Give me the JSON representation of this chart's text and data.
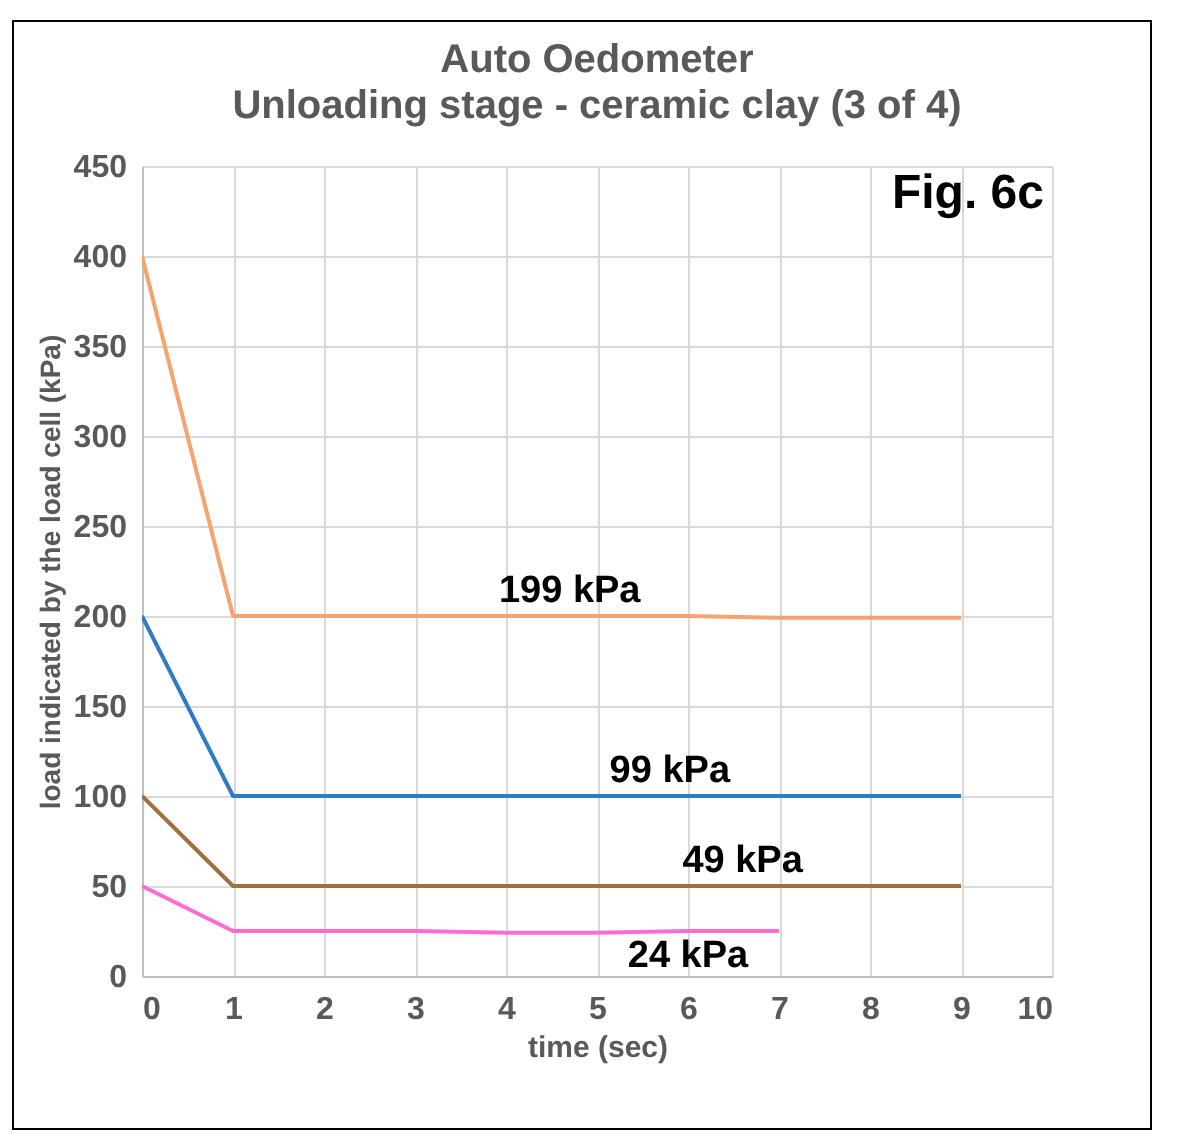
{
  "chart_data": {
    "type": "line",
    "title": "Auto Oedometer",
    "subtitle": "Unloading stage - ceramic clay (3 of 4)",
    "xlabel": "time (sec)",
    "ylabel": "load indicated by the load cell (kPa)",
    "x": [
      0,
      1,
      2,
      3,
      4,
      5,
      6,
      7,
      8,
      9
    ],
    "series": [
      {
        "color": "#f4a46c",
        "values": [
          400,
          200,
          200,
          200,
          200,
          200,
          200,
          199,
          199,
          199
        ]
      },
      {
        "color": "#2f7bc4",
        "values": [
          200,
          100,
          100,
          100,
          100,
          100,
          100,
          100,
          100,
          100
        ]
      },
      {
        "color": "#a0703c",
        "values": [
          100,
          50,
          50,
          50,
          50,
          50,
          50,
          50,
          50,
          50
        ]
      },
      {
        "color": "#ff6ad5",
        "values": [
          50,
          25,
          25,
          25,
          24,
          24,
          25,
          25,
          null,
          null
        ]
      }
    ],
    "xlim": [
      0,
      10
    ],
    "xticks": [
      0,
      1,
      2,
      3,
      4,
      5,
      6,
      7,
      8,
      9,
      10
    ],
    "ylim": [
      0,
      450
    ],
    "yticks": [
      0,
      50,
      100,
      150,
      200,
      250,
      300,
      350,
      400,
      450
    ],
    "grid": true,
    "marker": "none",
    "line_style": "solid",
    "legend": false,
    "annotations": [
      {
        "text": "199 kPa",
        "x": 4.7,
        "y": 200
      },
      {
        "text": "99 kPa",
        "x": 5.8,
        "y": 100
      },
      {
        "text": "49 kPa",
        "x": 6.6,
        "y": 50
      },
      {
        "text": "24 kPa",
        "x": 6,
        "y": 25
      },
      "Fig. 6c"
    ]
  }
}
